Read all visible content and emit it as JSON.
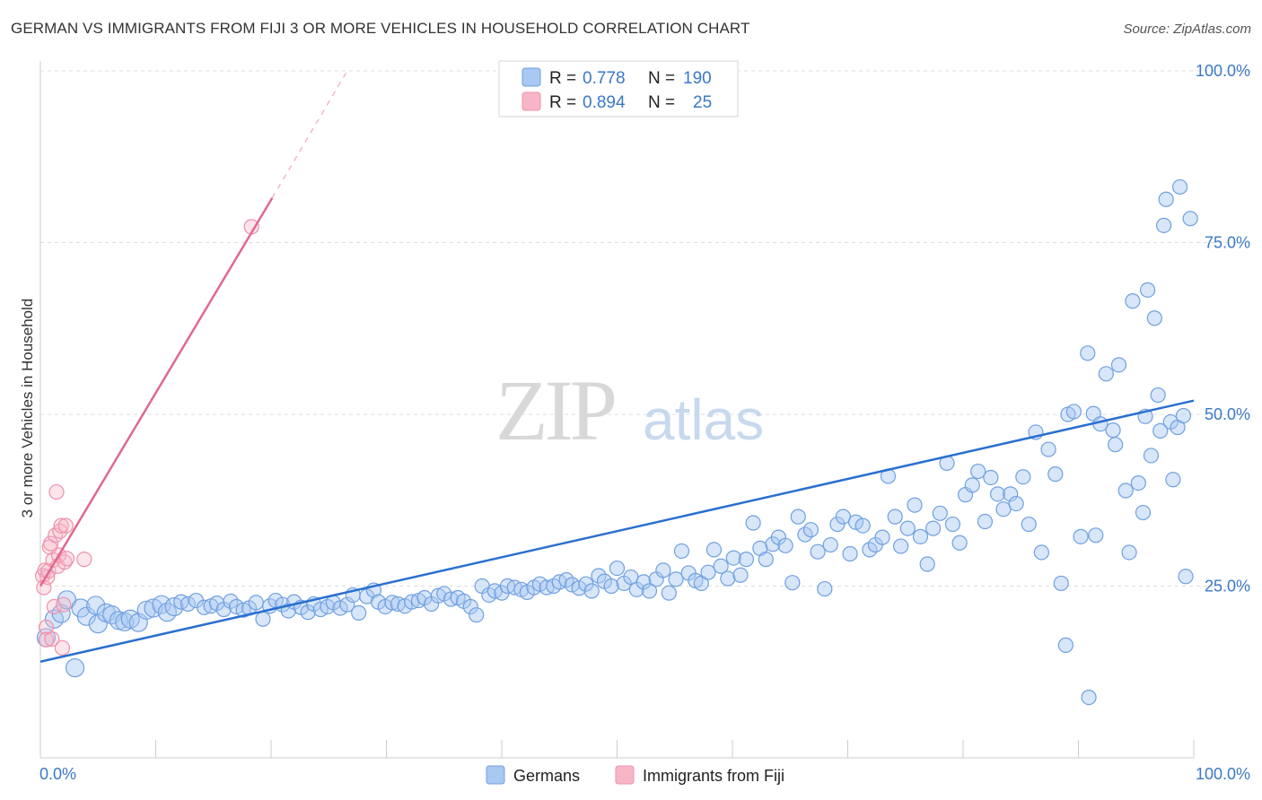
{
  "title": "GERMAN VS IMMIGRANTS FROM FIJI 3 OR MORE VEHICLES IN HOUSEHOLD CORRELATION CHART",
  "source": "Source: ZipAtlas.com",
  "watermark": {
    "zip": "ZIP",
    "atlas": "atlas"
  },
  "legend_box": {
    "rows": [
      {
        "r_label": "R =",
        "r_value": "0.778",
        "n_label": "N =",
        "n_value": "190",
        "color": "#a9c8f2"
      },
      {
        "r_label": "R =",
        "r_value": "0.894",
        "n_label": "N =",
        "n_value": "25",
        "color": "#f7b6c8"
      }
    ]
  },
  "colors": {
    "german": "#6fa0e0",
    "german_line": "#2a6fcf",
    "fiji": "#f090aa",
    "fiji_line": "#e06890",
    "axis_text": "#3a78c8"
  },
  "chart_data": {
    "type": "scatter",
    "title": "GERMAN VS IMMIGRANTS FROM FIJI 3 OR MORE VEHICLES IN HOUSEHOLD CORRELATION CHART",
    "xlabel": "",
    "ylabel": "3 or more Vehicles in Household",
    "xlim": [
      0,
      100
    ],
    "ylim": [
      0,
      100
    ],
    "x_tick_labels": [
      "0.0%",
      "100.0%"
    ],
    "y_tick_labels": [
      "25.0%",
      "50.0%",
      "75.0%",
      "100.0%"
    ],
    "y_ticks": [
      25,
      50,
      75,
      100
    ],
    "grid": true,
    "legend_position": "bottom",
    "series": [
      {
        "name": "Germans",
        "r": 0.778,
        "n": 190,
        "trend": {
          "x0": 0,
          "y0": 14.0,
          "x1": 100,
          "y1": 52.0
        },
        "points": [
          [
            0.5,
            17.5
          ],
          [
            1.2,
            20.2
          ],
          [
            1.8,
            21.0
          ],
          [
            2.3,
            23.0
          ],
          [
            3.0,
            13.1
          ],
          [
            3.5,
            21.8
          ],
          [
            4.0,
            20.6
          ],
          [
            4.8,
            22.2
          ],
          [
            5.0,
            19.5
          ],
          [
            5.7,
            21.1
          ],
          [
            6.2,
            20.8
          ],
          [
            6.8,
            20.0
          ],
          [
            7.3,
            19.8
          ],
          [
            7.8,
            20.2
          ],
          [
            8.5,
            19.7
          ],
          [
            9.2,
            21.5
          ],
          [
            9.8,
            21.8
          ],
          [
            10.5,
            22.3
          ],
          [
            11.0,
            21.2
          ],
          [
            11.6,
            22.0
          ],
          [
            12.2,
            22.7
          ],
          [
            12.8,
            22.4
          ],
          [
            13.5,
            22.9
          ],
          [
            14.2,
            21.9
          ],
          [
            14.8,
            22.1
          ],
          [
            15.3,
            22.5
          ],
          [
            15.9,
            21.6
          ],
          [
            16.5,
            22.8
          ],
          [
            17.0,
            22.0
          ],
          [
            17.6,
            21.5
          ],
          [
            18.1,
            21.8
          ],
          [
            18.7,
            22.6
          ],
          [
            19.3,
            20.2
          ],
          [
            19.9,
            22.1
          ],
          [
            20.4,
            22.9
          ],
          [
            21.0,
            22.3
          ],
          [
            21.5,
            21.4
          ],
          [
            22.0,
            22.7
          ],
          [
            22.6,
            21.9
          ],
          [
            23.2,
            21.2
          ],
          [
            23.7,
            22.4
          ],
          [
            24.3,
            21.6
          ],
          [
            24.9,
            22.0
          ],
          [
            25.4,
            22.6
          ],
          [
            26.0,
            21.8
          ],
          [
            26.6,
            22.3
          ],
          [
            27.1,
            23.7
          ],
          [
            27.6,
            21.1
          ],
          [
            28.3,
            23.5
          ],
          [
            28.9,
            24.4
          ],
          [
            29.3,
            22.7
          ],
          [
            29.9,
            22.0
          ],
          [
            30.5,
            22.6
          ],
          [
            31.0,
            22.4
          ],
          [
            31.6,
            22.1
          ],
          [
            32.2,
            22.7
          ],
          [
            32.8,
            22.9
          ],
          [
            33.3,
            23.3
          ],
          [
            33.9,
            22.4
          ],
          [
            34.5,
            23.6
          ],
          [
            35.0,
            23.9
          ],
          [
            35.6,
            23.1
          ],
          [
            36.2,
            23.3
          ],
          [
            36.7,
            22.8
          ],
          [
            37.3,
            22.0
          ],
          [
            37.8,
            20.8
          ],
          [
            38.3,
            25.0
          ],
          [
            38.9,
            23.7
          ],
          [
            39.4,
            24.3
          ],
          [
            40.0,
            24.0
          ],
          [
            40.5,
            25.0
          ],
          [
            41.1,
            24.8
          ],
          [
            41.7,
            24.5
          ],
          [
            42.2,
            24.1
          ],
          [
            42.8,
            24.8
          ],
          [
            43.3,
            25.3
          ],
          [
            43.9,
            24.8
          ],
          [
            44.5,
            25.0
          ],
          [
            45.0,
            25.6
          ],
          [
            45.6,
            25.9
          ],
          [
            46.1,
            25.2
          ],
          [
            46.7,
            24.7
          ],
          [
            47.3,
            25.3
          ],
          [
            47.8,
            24.3
          ],
          [
            48.4,
            26.5
          ],
          [
            48.9,
            25.7
          ],
          [
            49.5,
            25.0
          ],
          [
            50.0,
            27.6
          ],
          [
            50.6,
            25.4
          ],
          [
            51.2,
            26.3
          ],
          [
            51.7,
            24.5
          ],
          [
            52.3,
            25.6
          ],
          [
            52.8,
            24.3
          ],
          [
            53.4,
            26.0
          ],
          [
            54.0,
            27.3
          ],
          [
            54.5,
            24.0
          ],
          [
            55.1,
            26.0
          ],
          [
            55.6,
            30.1
          ],
          [
            56.2,
            26.9
          ],
          [
            56.8,
            25.8
          ],
          [
            57.3,
            25.4
          ],
          [
            57.9,
            27.0
          ],
          [
            58.4,
            30.3
          ],
          [
            59.0,
            27.9
          ],
          [
            59.6,
            26.1
          ],
          [
            60.1,
            29.1
          ],
          [
            60.7,
            26.6
          ],
          [
            61.2,
            28.9
          ],
          [
            61.8,
            34.2
          ],
          [
            62.4,
            30.5
          ],
          [
            62.9,
            28.9
          ],
          [
            63.5,
            31.1
          ],
          [
            64.0,
            32.1
          ],
          [
            64.6,
            30.9
          ],
          [
            65.2,
            25.5
          ],
          [
            65.7,
            35.1
          ],
          [
            66.3,
            32.5
          ],
          [
            66.8,
            33.2
          ],
          [
            67.4,
            30.0
          ],
          [
            68.0,
            24.6
          ],
          [
            68.5,
            31.0
          ],
          [
            69.1,
            34.0
          ],
          [
            69.6,
            35.1
          ],
          [
            70.2,
            29.7
          ],
          [
            70.7,
            34.3
          ],
          [
            71.3,
            33.8
          ],
          [
            71.9,
            30.3
          ],
          [
            72.4,
            31.0
          ],
          [
            73.0,
            32.1
          ],
          [
            73.5,
            41.0
          ],
          [
            74.1,
            35.1
          ],
          [
            74.6,
            30.8
          ],
          [
            75.2,
            33.4
          ],
          [
            75.8,
            36.8
          ],
          [
            76.3,
            32.2
          ],
          [
            76.9,
            28.2
          ],
          [
            77.4,
            33.4
          ],
          [
            78.0,
            35.6
          ],
          [
            78.6,
            42.9
          ],
          [
            79.1,
            34.0
          ],
          [
            79.7,
            31.3
          ],
          [
            80.2,
            38.3
          ],
          [
            80.8,
            39.7
          ],
          [
            81.3,
            41.7
          ],
          [
            81.9,
            34.4
          ],
          [
            82.4,
            40.8
          ],
          [
            83.0,
            38.4
          ],
          [
            83.5,
            36.2
          ],
          [
            84.1,
            38.4
          ],
          [
            84.6,
            37.0
          ],
          [
            85.2,
            40.9
          ],
          [
            85.7,
            34.0
          ],
          [
            86.3,
            47.4
          ],
          [
            86.8,
            29.9
          ],
          [
            87.4,
            44.9
          ],
          [
            88.0,
            41.3
          ],
          [
            88.5,
            25.4
          ],
          [
            89.1,
            50.0
          ],
          [
            89.6,
            50.4
          ],
          [
            90.2,
            32.2
          ],
          [
            90.8,
            58.9
          ],
          [
            91.3,
            50.1
          ],
          [
            91.9,
            48.6
          ],
          [
            92.4,
            55.9
          ],
          [
            93.0,
            47.7
          ],
          [
            93.5,
            57.2
          ],
          [
            94.1,
            38.9
          ],
          [
            94.7,
            66.5
          ],
          [
            95.2,
            40.0
          ],
          [
            95.8,
            49.7
          ],
          [
            96.3,
            44.0
          ],
          [
            96.9,
            52.8
          ],
          [
            97.4,
            77.5
          ],
          [
            98.0,
            48.9
          ],
          [
            98.6,
            48.1
          ],
          [
            99.1,
            49.8
          ],
          [
            88.9,
            16.4
          ],
          [
            90.9,
            8.8
          ],
          [
            91.5,
            32.4
          ],
          [
            93.2,
            45.6
          ],
          [
            94.4,
            29.9
          ],
          [
            95.6,
            35.7
          ],
          [
            96.0,
            68.1
          ],
          [
            96.6,
            64.0
          ],
          [
            97.1,
            47.6
          ],
          [
            97.6,
            81.3
          ],
          [
            98.2,
            40.5
          ],
          [
            98.8,
            83.1
          ],
          [
            99.3,
            26.4
          ],
          [
            99.7,
            78.5
          ]
        ]
      },
      {
        "name": "Immigrants from Fiji",
        "r": 0.894,
        "n": 25,
        "trend": {
          "x0": 0,
          "y0": 25.0,
          "x1": 20.1,
          "y1": 81.5
        },
        "trend_dashed_to": {
          "x": 26.6,
          "y": 100.0
        },
        "points": [
          [
            0.2,
            26.5
          ],
          [
            0.3,
            24.8
          ],
          [
            0.4,
            27.3
          ],
          [
            0.5,
            19.0
          ],
          [
            0.5,
            17.2
          ],
          [
            0.6,
            26.3
          ],
          [
            0.7,
            27.2
          ],
          [
            0.8,
            30.7
          ],
          [
            0.9,
            31.2
          ],
          [
            1.0,
            17.3
          ],
          [
            1.1,
            28.8
          ],
          [
            1.2,
            22.0
          ],
          [
            1.3,
            32.4
          ],
          [
            1.4,
            38.7
          ],
          [
            1.5,
            27.9
          ],
          [
            1.6,
            29.5
          ],
          [
            1.7,
            33.0
          ],
          [
            1.8,
            33.8
          ],
          [
            1.9,
            16.0
          ],
          [
            2.0,
            22.3
          ],
          [
            2.1,
            28.5
          ],
          [
            2.2,
            33.8
          ],
          [
            2.3,
            29.0
          ],
          [
            3.8,
            28.9
          ],
          [
            18.3,
            77.3
          ]
        ]
      }
    ]
  },
  "bottom_legend": [
    {
      "label": "Germans",
      "color": "#a9c8f2"
    },
    {
      "label": "Immigrants from Fiji",
      "color": "#f7b6c8"
    }
  ]
}
